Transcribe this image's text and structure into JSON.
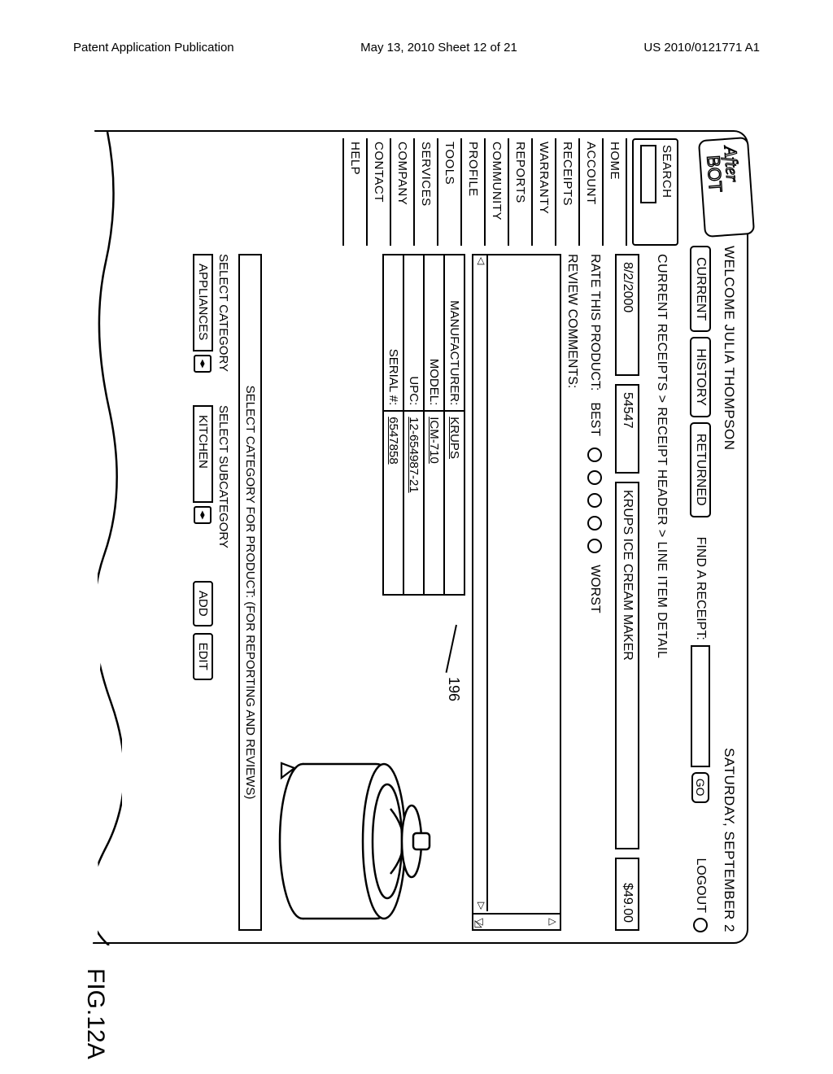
{
  "page_header": {
    "left": "Patent Application Publication",
    "center": "May 13, 2010  Sheet 12 of 21",
    "right": "US 2010/0121771 A1"
  },
  "figure_label": "FIG.12A",
  "callout_ref": "196",
  "logo_text": "AfterBOT",
  "topbar": {
    "welcome": "WELCOME JULIA THOMPSON",
    "date": "SATURDAY, SEPTEMBER 2",
    "logout": "LOGOUT"
  },
  "tabs": {
    "current": "CURRENT",
    "history": "HISTORY",
    "returned": "RETURNED",
    "find_label": "FIND A RECEIPT:",
    "go": "GO"
  },
  "sidebar": {
    "search_label": "SEARCH",
    "items": [
      "HOME",
      "ACCOUNT",
      "RECEIPTS",
      "WARRANTY",
      "REPORTS",
      "COMMUNITY",
      "PROFILE",
      "TOOLS",
      "SERVICES",
      "COMPANY",
      "CONTACT",
      "HELP"
    ]
  },
  "breadcrumb": "CURRENT RECEIPTS > RECEIPT HEADER > LINE ITEM DETAIL",
  "receipt": {
    "date": "8/2/2000",
    "sku": "54547",
    "name": "KRUPS ICE CREAM MAKER",
    "price": "$49.00"
  },
  "rating": {
    "label": "RATE THIS PRODUCT:",
    "best": "BEST",
    "worst": "WORST",
    "count": 5
  },
  "review_label": "REVIEW COMMENTS:",
  "details": {
    "rows": [
      {
        "k": "MANUFACTURER:",
        "v": "KRUPS"
      },
      {
        "k": "MODEL:",
        "v": "ICM-710"
      },
      {
        "k": "UPC:",
        "v": "12-654987-21"
      },
      {
        "k": "SERIAL #:",
        "v": "6547858"
      }
    ]
  },
  "category": {
    "header": "SELECT CATEGORY FOR PRODUCT: (FOR REPORTING AND REVIEWS)",
    "cat_label": "SELECT CATEGORY",
    "cat_value": "APPLIANCES",
    "sub_label": "SELECT SUBCATEGORY",
    "sub_value": "KITCHEN",
    "add": "ADD",
    "edit": "EDIT"
  }
}
